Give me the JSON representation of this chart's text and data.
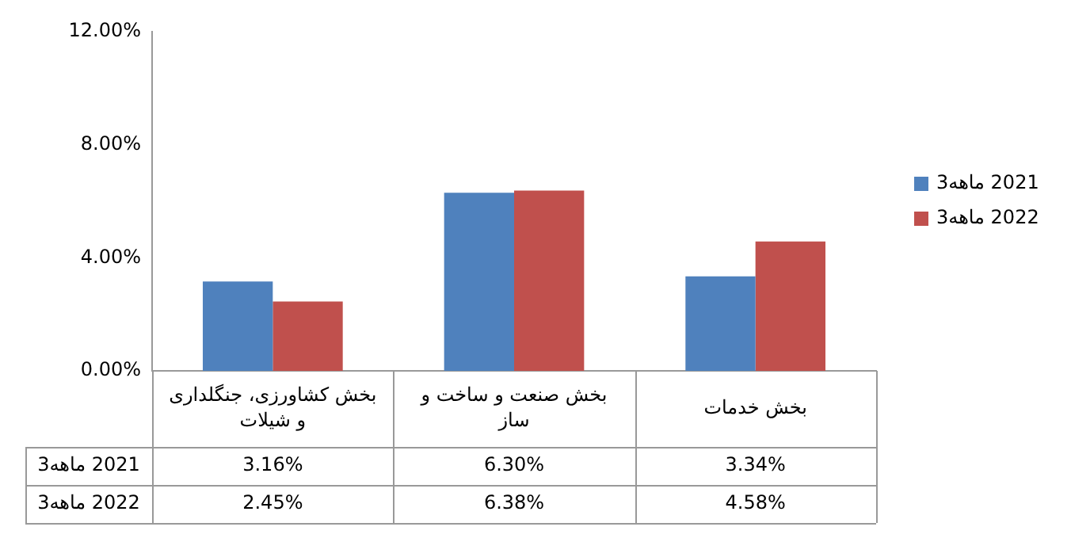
{
  "chart_data": {
    "type": "bar",
    "categories": [
      "بخش کشاورزی، جنگلداری و شیلات",
      "بخش صنعت و ساخت و ساز",
      "بخش خدمات"
    ],
    "series": [
      {
        "name": "3ماهه 2021",
        "color": "#4f81bd",
        "values": [
          3.16,
          6.3,
          3.34
        ],
        "value_labels": [
          "3.16%",
          "6.30%",
          "3.34%"
        ]
      },
      {
        "name": "3ماهه 2022",
        "color": "#c0504d",
        "values": [
          2.45,
          6.38,
          4.58
        ],
        "value_labels": [
          "2.45%",
          "6.38%",
          "4.58%"
        ]
      }
    ],
    "ylim": [
      0,
      12
    ],
    "yticks": [
      {
        "value": 0,
        "label": "0.00%"
      },
      {
        "value": 4,
        "label": "4.00%"
      },
      {
        "value": 8,
        "label": "8.00%"
      },
      {
        "value": 12,
        "label": "12.00%"
      }
    ],
    "grid": false,
    "legend": "right"
  }
}
